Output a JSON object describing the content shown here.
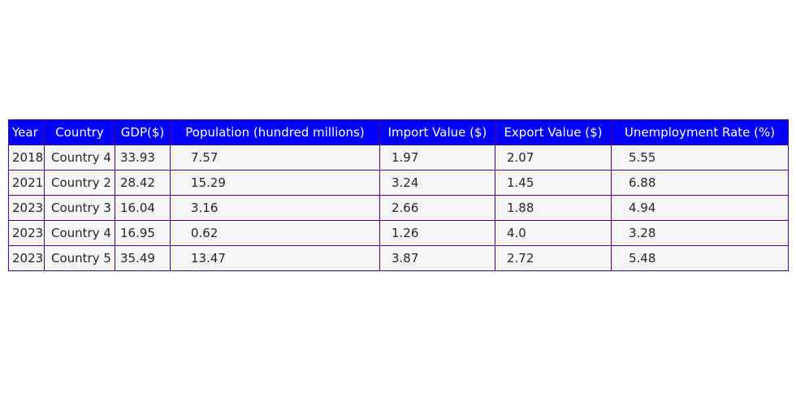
{
  "chart_data": {
    "type": "table",
    "columns": [
      "Year",
      "Country",
      "GDP($)",
      "Population (hundred millions)",
      "Import Value ($)",
      "Export Value ($)",
      "Unemployment Rate (%)"
    ],
    "rows": [
      [
        "2018",
        "Country 4",
        "33.93",
        "7.57",
        "1.97",
        "2.07",
        "5.55"
      ],
      [
        "2021",
        "Country 2",
        "28.42",
        "15.29",
        "3.24",
        "1.45",
        "6.88"
      ],
      [
        "2023",
        "Country 3",
        "16.04",
        "3.16",
        "2.66",
        "1.88",
        "4.94"
      ],
      [
        "2023",
        "Country 4",
        "16.95",
        "0.62",
        "1.26",
        "4.0",
        "3.28"
      ],
      [
        "2023",
        "Country 5",
        "35.49",
        "13.47",
        "3.87",
        "2.72",
        "5.48"
      ]
    ],
    "colors": {
      "header_bg": "#0000ff",
      "header_text": "#ffffff",
      "cell_bg": "#f5f5f5",
      "border": "#4b0082"
    }
  }
}
